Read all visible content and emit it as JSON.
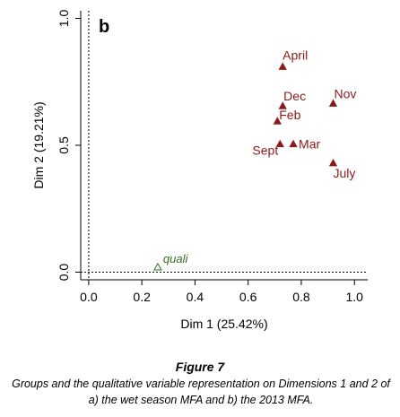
{
  "chart_data": {
    "type": "scatter",
    "panel_label": "b",
    "xlabel": "Dim 1 (25.42%)",
    "ylabel": "Dim 2 (19.21%)",
    "xlim": [
      -0.03,
      1.05
    ],
    "ylim": [
      -0.03,
      1.03
    ],
    "x_ticks": [
      0.0,
      0.2,
      0.4,
      0.6,
      0.8,
      1.0
    ],
    "x_tick_labels": [
      "0.0",
      "0.2",
      "0.4",
      "0.6",
      "0.8",
      "1.0"
    ],
    "y_ticks": [
      0.0,
      0.5,
      1.0
    ],
    "y_tick_labels": [
      "0.0",
      "0.5",
      "1.0"
    ],
    "reference_lines": {
      "x": 0,
      "y": 0
    },
    "grid": false,
    "colors": {
      "groups": "#8b1a1a",
      "quali": "#3a6b1e"
    },
    "series": [
      {
        "marker": "filled-triangle",
        "points": [
          {
            "label": "April",
            "x": 0.73,
            "y": 0.81
          },
          {
            "label": "Dec",
            "x": 0.73,
            "y": 0.655
          },
          {
            "label": "Nov",
            "x": 0.92,
            "y": 0.665
          },
          {
            "label": "Feb",
            "x": 0.71,
            "y": 0.595
          },
          {
            "label": "Sept",
            "x": 0.72,
            "y": 0.505
          },
          {
            "label": "Mar",
            "x": 0.77,
            "y": 0.505
          },
          {
            "label": "July",
            "x": 0.92,
            "y": 0.43
          }
        ]
      },
      {
        "marker": "open-triangle",
        "points": [
          {
            "label": "quali",
            "x": 0.26,
            "y": 0.02
          }
        ]
      }
    ]
  },
  "caption": {
    "title": "Figure 7",
    "text": "Groups and the qualitative variable representation on Dimensions 1 and 2 of a) the wet season MFA and b) the 2013 MFA."
  }
}
